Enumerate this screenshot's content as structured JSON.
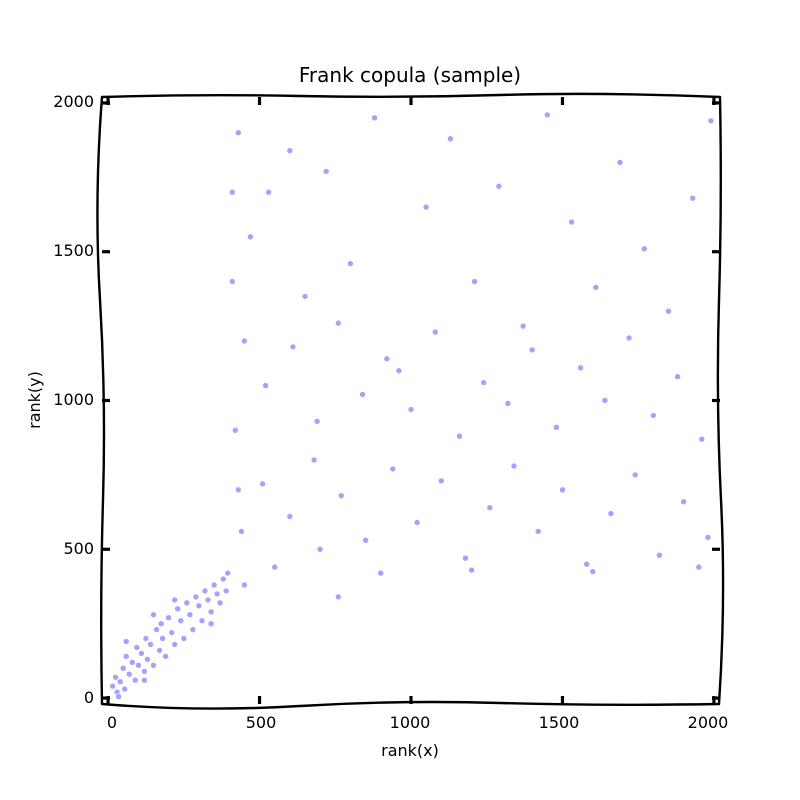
{
  "chart_data": {
    "type": "scatter",
    "title": "Frank copula (sample)",
    "xlabel": "rank(x)",
    "ylabel": "rank(y)",
    "xlim": [
      -20,
      2020
    ],
    "ylim": [
      -20,
      2020
    ],
    "xticks": [
      "0",
      "500",
      "1000",
      "1500",
      "2000"
    ],
    "yticks": [
      "0",
      "500",
      "1000",
      "1500",
      "2000"
    ],
    "xtick_values": [
      0,
      500,
      1000,
      1500,
      2000
    ],
    "ytick_values": [
      0,
      500,
      1000,
      1500,
      2000
    ],
    "grid": false,
    "legend": "none",
    "marker_color": "#6666ff",
    "series": [
      {
        "points": [
          [
            15,
            40
          ],
          [
            25,
            70
          ],
          [
            30,
            20
          ],
          [
            40,
            55
          ],
          [
            50,
            100
          ],
          [
            55,
            30
          ],
          [
            60,
            140
          ],
          [
            70,
            80
          ],
          [
            80,
            120
          ],
          [
            90,
            60
          ],
          [
            95,
            170
          ],
          [
            100,
            110
          ],
          [
            110,
            150
          ],
          [
            120,
            90
          ],
          [
            125,
            200
          ],
          [
            130,
            130
          ],
          [
            140,
            180
          ],
          [
            150,
            110
          ],
          [
            160,
            230
          ],
          [
            170,
            160
          ],
          [
            175,
            250
          ],
          [
            180,
            200
          ],
          [
            190,
            140
          ],
          [
            200,
            270
          ],
          [
            210,
            220
          ],
          [
            220,
            180
          ],
          [
            230,
            300
          ],
          [
            240,
            260
          ],
          [
            250,
            200
          ],
          [
            260,
            320
          ],
          [
            270,
            280
          ],
          [
            280,
            230
          ],
          [
            290,
            340
          ],
          [
            300,
            310
          ],
          [
            310,
            260
          ],
          [
            320,
            360
          ],
          [
            330,
            330
          ],
          [
            340,
            290
          ],
          [
            350,
            380
          ],
          [
            360,
            350
          ],
          [
            370,
            320
          ],
          [
            380,
            400
          ],
          [
            390,
            360
          ],
          [
            395,
            420
          ],
          [
            60,
            190
          ],
          [
            150,
            280
          ],
          [
            220,
            330
          ],
          [
            340,
            250
          ],
          [
            120,
            60
          ],
          [
            35,
            5
          ],
          [
            430,
            1900
          ],
          [
            470,
            1550
          ],
          [
            530,
            1700
          ],
          [
            600,
            1840
          ],
          [
            650,
            1350
          ],
          [
            720,
            1770
          ],
          [
            800,
            1460
          ],
          [
            880,
            1950
          ],
          [
            960,
            1100
          ],
          [
            1050,
            1650
          ],
          [
            1130,
            1880
          ],
          [
            1210,
            1400
          ],
          [
            1290,
            1720
          ],
          [
            1370,
            1250
          ],
          [
            1450,
            1960
          ],
          [
            1530,
            1600
          ],
          [
            1610,
            1380
          ],
          [
            1690,
            1800
          ],
          [
            1770,
            1510
          ],
          [
            1850,
            1300
          ],
          [
            1930,
            1680
          ],
          [
            1990,
            1940
          ],
          [
            450,
            1200
          ],
          [
            520,
            1050
          ],
          [
            610,
            1180
          ],
          [
            690,
            930
          ],
          [
            760,
            1260
          ],
          [
            840,
            1020
          ],
          [
            920,
            1140
          ],
          [
            1000,
            970
          ],
          [
            1080,
            1230
          ],
          [
            1160,
            880
          ],
          [
            1240,
            1060
          ],
          [
            1320,
            990
          ],
          [
            1400,
            1170
          ],
          [
            1480,
            910
          ],
          [
            1560,
            1110
          ],
          [
            1640,
            1000
          ],
          [
            1720,
            1210
          ],
          [
            1800,
            950
          ],
          [
            1880,
            1080
          ],
          [
            1960,
            870
          ],
          [
            440,
            560
          ],
          [
            510,
            720
          ],
          [
            600,
            610
          ],
          [
            680,
            800
          ],
          [
            770,
            680
          ],
          [
            850,
            530
          ],
          [
            940,
            770
          ],
          [
            1020,
            590
          ],
          [
            1100,
            730
          ],
          [
            1180,
            470
          ],
          [
            1260,
            640
          ],
          [
            1340,
            780
          ],
          [
            1420,
            560
          ],
          [
            1500,
            700
          ],
          [
            1580,
            450
          ],
          [
            1660,
            620
          ],
          [
            1740,
            750
          ],
          [
            1820,
            480
          ],
          [
            1900,
            660
          ],
          [
            1980,
            540
          ],
          [
            900,
            420
          ],
          [
            1200,
            430
          ],
          [
            1600,
            425
          ],
          [
            1950,
            440
          ],
          [
            410,
            1400
          ],
          [
            410,
            1700
          ],
          [
            420,
            900
          ],
          [
            430,
            700
          ],
          [
            550,
            440
          ],
          [
            700,
            500
          ],
          [
            760,
            340
          ],
          [
            450,
            380
          ]
        ]
      }
    ]
  }
}
